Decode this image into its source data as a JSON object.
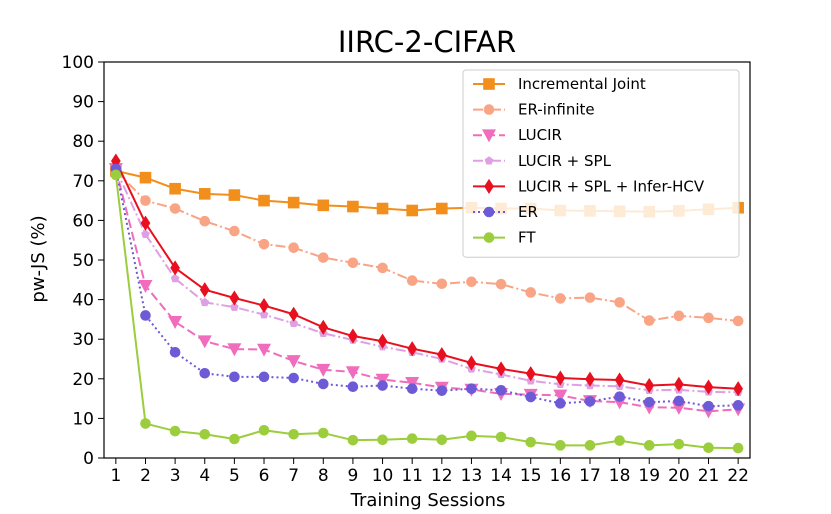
{
  "chart_data": {
    "type": "line",
    "title": "IIRC-2-CIFAR",
    "xlabel": "Training Sessions",
    "ylabel": "pw-JS (%)",
    "x": [
      1,
      2,
      3,
      4,
      5,
      6,
      7,
      8,
      9,
      10,
      11,
      12,
      13,
      14,
      15,
      16,
      17,
      18,
      19,
      20,
      21,
      22
    ],
    "xlim": [
      0.6,
      22.4
    ],
    "ylim": [
      0,
      100
    ],
    "yticks": [
      0,
      10,
      20,
      30,
      40,
      50,
      60,
      70,
      80,
      90,
      100
    ],
    "legend_position": "top-right",
    "series": [
      {
        "name": "Incremental Joint",
        "color": "#f28e1c",
        "marker": "square",
        "dash": "solid",
        "values": [
          72.5,
          70.8,
          68.0,
          66.7,
          66.4,
          65.0,
          64.5,
          63.8,
          63.5,
          63.0,
          62.5,
          63.0,
          63.2,
          63.0,
          63.0,
          62.5,
          62.4,
          62.3,
          62.2,
          62.4,
          62.8,
          63.2
        ]
      },
      {
        "name": "ER-infinite",
        "color": "#f9a484",
        "marker": "circle",
        "dash": "dashdot",
        "values": [
          72.5,
          65.0,
          63.0,
          59.8,
          57.3,
          54.0,
          53.1,
          50.6,
          49.3,
          48.0,
          44.8,
          44.0,
          44.5,
          43.9,
          41.8,
          40.3,
          40.5,
          39.3,
          34.7,
          35.9,
          35.4,
          34.6
        ]
      },
      {
        "name": "LUCIR",
        "color": "#f06cbc",
        "marker": "triangle-down",
        "dash": "dashed",
        "values": [
          73.0,
          43.5,
          34.4,
          29.5,
          27.5,
          27.4,
          24.5,
          22.3,
          21.7,
          19.8,
          19.0,
          17.8,
          17.3,
          16.2,
          16.0,
          15.8,
          14.4,
          14.1,
          12.8,
          12.7,
          11.8,
          12.3
        ]
      },
      {
        "name": "LUCIR + SPL",
        "color": "#dfa0e3",
        "marker": "pentagon",
        "dash": "dashdot",
        "values": [
          73.0,
          56.5,
          45.3,
          39.3,
          38.1,
          36.2,
          34.0,
          31.5,
          29.8,
          28.1,
          26.7,
          25.0,
          22.5,
          21.1,
          19.5,
          18.6,
          18.3,
          18.1,
          17.1,
          17.2,
          16.7,
          16.6
        ]
      },
      {
        "name": "LUCIR + SPL + Infer-HCV",
        "color": "#e8101f",
        "marker": "diamond",
        "dash": "solid",
        "values": [
          75.0,
          59.3,
          48.0,
          42.5,
          40.4,
          38.5,
          36.3,
          33.0,
          30.8,
          29.5,
          27.6,
          26.1,
          24.0,
          22.5,
          21.3,
          20.2,
          19.9,
          19.7,
          18.3,
          18.6,
          17.9,
          17.5
        ]
      },
      {
        "name": "ER",
        "color": "#6c5ad6",
        "marker": "circle",
        "dash": "dotted",
        "values": [
          73.0,
          36.0,
          26.7,
          21.4,
          20.5,
          20.5,
          20.2,
          18.7,
          18.0,
          18.3,
          17.5,
          17.0,
          17.5,
          17.1,
          15.4,
          13.8,
          14.3,
          15.5,
          14.1,
          14.4,
          13.1,
          13.3
        ]
      },
      {
        "name": "FT",
        "color": "#9bcd3c",
        "marker": "circle",
        "dash": "solid",
        "values": [
          71.5,
          8.7,
          6.8,
          6.0,
          4.8,
          7.0,
          6.0,
          6.3,
          4.5,
          4.6,
          4.9,
          4.6,
          5.6,
          5.3,
          4.0,
          3.2,
          3.2,
          4.4,
          3.2,
          3.5,
          2.6,
          2.5
        ]
      }
    ]
  }
}
